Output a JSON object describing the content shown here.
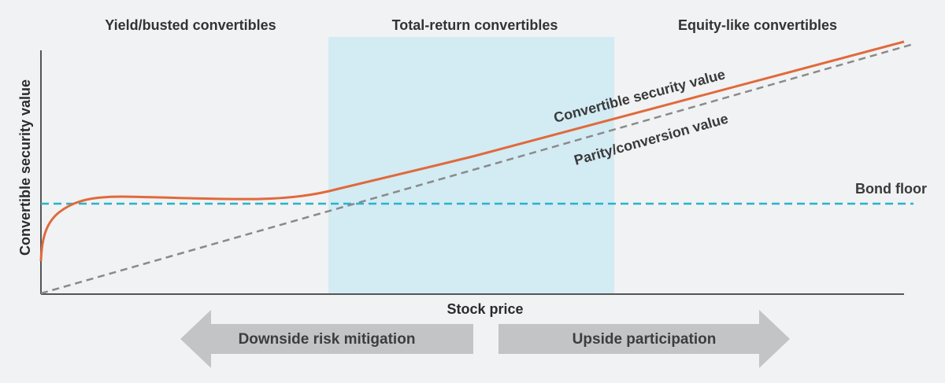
{
  "regions": {
    "left": "Yield/busted convertibles",
    "middle": "Total-return convertibles",
    "right": "Equity-like convertibles"
  },
  "axes": {
    "x_label": "Stock price",
    "y_label": "Convertible security value"
  },
  "curves": {
    "convertible_value": "Convertible security value",
    "parity_value": "Parity/conversion value",
    "bond_floor": "Bond floor"
  },
  "arrows": {
    "left": "Downside risk mitigation",
    "right": "Upside participation"
  },
  "colors": {
    "background": "#f1f2f3",
    "highlight_band": "#d3ebf3",
    "convertible_curve": "#e06a3c",
    "parity_line": "#8a8a8a",
    "bond_floor_line": "#25b4cd",
    "axis": "#555555",
    "arrow_fill": "#c2c4c6"
  }
}
